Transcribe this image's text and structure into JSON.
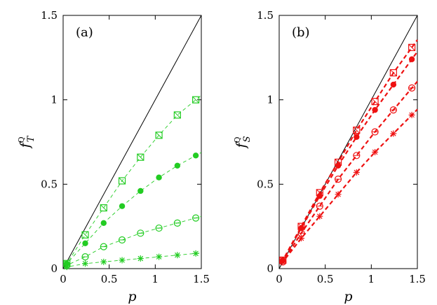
{
  "chart_data": [
    {
      "type": "line",
      "panel_label": "(a)",
      "xlabel": "p",
      "ylabel": {
        "main": "f",
        "superscript": "Q",
        "subscript": "T"
      },
      "xlim": [
        0,
        1.5
      ],
      "ylim": [
        0,
        1.5
      ],
      "xticks": [
        "0",
        "0.5",
        "1",
        "1.5"
      ],
      "yticks": [
        "0",
        "0.5",
        "1",
        "1.5"
      ],
      "reference_line": {
        "x": [
          0,
          1.5
        ],
        "y": [
          0,
          1.5
        ],
        "color": "#000000"
      },
      "series_color": "#22cc22",
      "line_style": "thin-dashed",
      "series": [
        {
          "marker": "open-square",
          "x": [
            0.04,
            0.24,
            0.44,
            0.64,
            0.84,
            1.04,
            1.24,
            1.44
          ],
          "y": [
            0.03,
            0.2,
            0.36,
            0.52,
            0.66,
            0.79,
            0.91,
            1.0
          ]
        },
        {
          "marker": "filled-circle",
          "x": [
            0.04,
            0.24,
            0.44,
            0.64,
            0.84,
            1.04,
            1.24,
            1.44
          ],
          "y": [
            0.03,
            0.15,
            0.27,
            0.37,
            0.46,
            0.54,
            0.61,
            0.67
          ]
        },
        {
          "marker": "open-circle",
          "x": [
            0.04,
            0.24,
            0.44,
            0.64,
            0.84,
            1.04,
            1.24,
            1.44
          ],
          "y": [
            0.02,
            0.07,
            0.13,
            0.17,
            0.21,
            0.24,
            0.27,
            0.3
          ]
        },
        {
          "marker": "star",
          "x": [
            0.04,
            0.24,
            0.44,
            0.64,
            0.84,
            1.04,
            1.24,
            1.44
          ],
          "y": [
            0.01,
            0.03,
            0.04,
            0.05,
            0.06,
            0.07,
            0.08,
            0.09
          ]
        }
      ]
    },
    {
      "type": "line",
      "panel_label": "(b)",
      "xlabel": "p",
      "ylabel": {
        "main": "f",
        "superscript": "Q",
        "subscript": "S"
      },
      "xlim": [
        0,
        1.5
      ],
      "ylim": [
        0,
        1.5
      ],
      "xticks": [
        "0",
        "0.5",
        "1",
        "1.5"
      ],
      "yticks": [
        "0",
        "0.5",
        "1",
        "1.5"
      ],
      "reference_line": {
        "x": [
          0,
          1.5
        ],
        "y": [
          0,
          1.5
        ],
        "color": "#000000"
      },
      "series_color": "#ee1111",
      "line_style": "thick-dashed",
      "series": [
        {
          "marker": "open-square",
          "x": [
            0.04,
            0.24,
            0.44,
            0.64,
            0.84,
            1.04,
            1.24,
            1.44
          ],
          "y": [
            0.05,
            0.25,
            0.45,
            0.63,
            0.82,
            0.99,
            1.16,
            1.31
          ]
        },
        {
          "marker": "filled-circle",
          "x": [
            0.04,
            0.24,
            0.44,
            0.64,
            0.84,
            1.04,
            1.24,
            1.44
          ],
          "y": [
            0.05,
            0.24,
            0.43,
            0.61,
            0.78,
            0.94,
            1.09,
            1.24
          ]
        },
        {
          "marker": "open-circle",
          "x": [
            0.04,
            0.24,
            0.44,
            0.64,
            0.84,
            1.04,
            1.24,
            1.44
          ],
          "y": [
            0.04,
            0.21,
            0.37,
            0.53,
            0.67,
            0.81,
            0.94,
            1.07
          ]
        },
        {
          "marker": "star",
          "x": [
            0.04,
            0.24,
            0.44,
            0.64,
            0.84,
            1.04,
            1.24,
            1.44
          ],
          "y": [
            0.04,
            0.18,
            0.31,
            0.44,
            0.57,
            0.69,
            0.8,
            0.91
          ]
        }
      ]
    }
  ]
}
